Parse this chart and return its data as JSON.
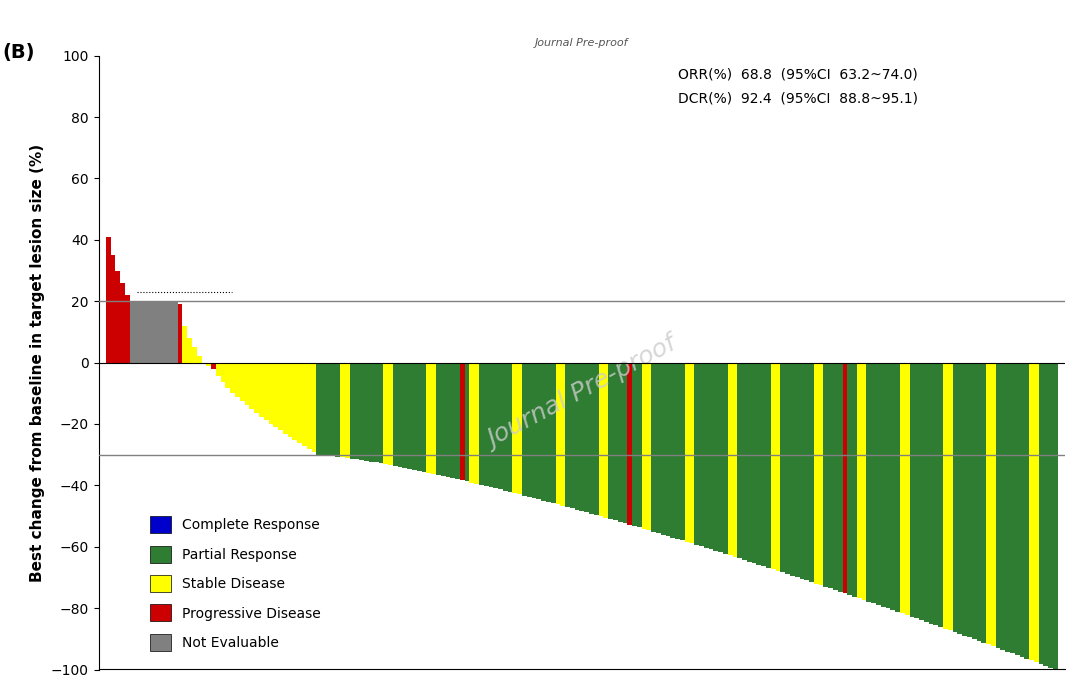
{
  "ylabel": "Best change from baseline in target lesion size (%)",
  "ylim": [
    -100,
    100
  ],
  "yticks": [
    -100,
    -80,
    -60,
    -40,
    -20,
    0,
    20,
    40,
    60,
    80,
    100
  ],
  "hline_20": 20,
  "hline_neg30": -30,
  "annotation_line1": "ORR(%)  68.8  (95%CI  63.2~74.0)",
  "annotation_line2": "DCR(%)  92.4  (95%CI  88.8~95.1)",
  "watermark": "Journal Pre-proof",
  "panel_label": "(B)",
  "colors": {
    "CR": "#0000CC",
    "PR": "#2E7D32",
    "SD": "#FFFF00",
    "PD": "#CC0000",
    "NE": "#808080"
  },
  "legend_labels": [
    "Complete Response",
    "Partial Response",
    "Stable Disease",
    "Progressive Disease",
    "Not Evaluable"
  ],
  "legend_colors": [
    "#0000CC",
    "#2E7D32",
    "#FFFF00",
    "#CC0000",
    "#808080"
  ]
}
